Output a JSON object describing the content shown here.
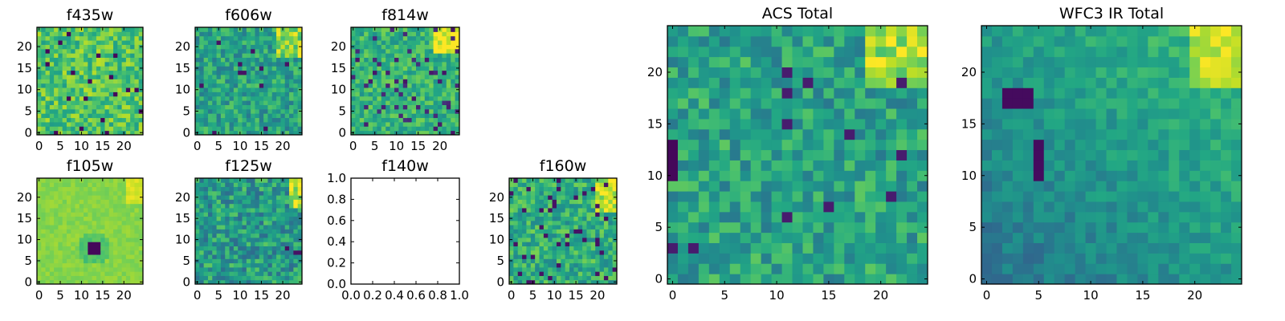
{
  "chart_data": [
    {
      "type": "heatmap",
      "title": "f435w",
      "x_ticks": [
        0,
        5,
        10,
        15,
        20
      ],
      "y_ticks": [
        0,
        5,
        10,
        15,
        20
      ],
      "xlim": [
        -0.5,
        24.5
      ],
      "ylim": [
        -0.5,
        24.5
      ],
      "grid_size": [
        25,
        25
      ],
      "grid": false,
      "colormap": "viridis",
      "pattern": "uniform noise, mostly green-yellow with scattered dark pixels"
    },
    {
      "type": "heatmap",
      "title": "f606w",
      "x_ticks": [
        0,
        5,
        10,
        15,
        20
      ],
      "y_ticks": [
        0,
        5,
        10,
        15,
        20
      ],
      "xlim": [
        -0.5,
        24.5
      ],
      "ylim": [
        -0.5,
        24.5
      ],
      "grid_size": [
        25,
        25
      ],
      "grid": false,
      "colormap": "viridis",
      "pattern": "noise, teal-green, brighter at top-right"
    },
    {
      "type": "heatmap",
      "title": "f814w",
      "x_ticks": [
        0,
        5,
        10,
        15,
        20
      ],
      "y_ticks": [
        0,
        5,
        10,
        15,
        20
      ],
      "xlim": [
        -0.5,
        24.5
      ],
      "ylim": [
        -0.5,
        24.5
      ],
      "grid_size": [
        25,
        25
      ],
      "grid": false,
      "colormap": "viridis",
      "pattern": "noise with dark speckles, bright yellow at top-right"
    },
    {
      "type": "heatmap",
      "title": "f105w",
      "x_ticks": [
        0,
        5,
        10,
        15,
        20
      ],
      "y_ticks": [
        0,
        5,
        10,
        15,
        20
      ],
      "xlim": [
        -0.5,
        24.5
      ],
      "ylim": [
        -0.5,
        24.5
      ],
      "grid_size": [
        25,
        25
      ],
      "grid": false,
      "colormap": "viridis",
      "pattern": "smooth yellow-green field with a dark blob near (13, 8)"
    },
    {
      "type": "heatmap",
      "title": "f125w",
      "x_ticks": [
        0,
        5,
        10,
        15,
        20
      ],
      "y_ticks": [
        0,
        5,
        10,
        15,
        20
      ],
      "xlim": [
        -0.5,
        24.5
      ],
      "ylim": [
        -0.5,
        24.5
      ],
      "grid_size": [
        25,
        25
      ],
      "grid": false,
      "colormap": "viridis",
      "pattern": "teal-green, yellow at top-right and right edge, dark spots near (21, 7)"
    },
    {
      "type": "empty",
      "title": "f140w",
      "x_ticks": [
        0.0,
        0.2,
        0.4,
        0.6,
        0.8,
        1.0
      ],
      "y_ticks": [
        0.0,
        0.2,
        0.4,
        0.6,
        0.8,
        1.0
      ],
      "xlim": [
        0,
        1
      ],
      "ylim": [
        0,
        1
      ],
      "tick_labels_x": [
        "0.0",
        "0.2",
        "0.4",
        "0.6",
        "0.8",
        "1.0"
      ],
      "tick_labels_y": [
        "0.0",
        "0.2",
        "0.4",
        "0.6",
        "0.8",
        "1.0"
      ]
    },
    {
      "type": "heatmap",
      "title": "f160w",
      "x_ticks": [
        0,
        5,
        10,
        15,
        20
      ],
      "y_ticks": [
        0,
        5,
        10,
        15,
        20
      ],
      "xlim": [
        -0.5,
        24.5
      ],
      "ylim": [
        -0.5,
        24.5
      ],
      "grid_size": [
        25,
        25
      ],
      "grid": false,
      "colormap": "viridis",
      "pattern": "green with dark spots, bright near top-right"
    },
    {
      "type": "heatmap",
      "title": "ACS Total",
      "x_ticks": [
        0,
        5,
        10,
        15,
        20
      ],
      "y_ticks": [
        0,
        5,
        10,
        15,
        20
      ],
      "xlim": [
        -0.5,
        24.5
      ],
      "ylim": [
        -0.5,
        24.5
      ],
      "grid_size": [
        25,
        25
      ],
      "grid": false,
      "colormap": "viridis",
      "pattern": "green field, yellow at top-right, dark column on left edge"
    },
    {
      "type": "heatmap",
      "title": "WFC3 IR Total",
      "x_ticks": [
        0,
        5,
        10,
        15,
        20
      ],
      "y_ticks": [
        0,
        5,
        10,
        15,
        20
      ],
      "xlim": [
        -0.5,
        24.5
      ],
      "ylim": [
        -0.5,
        24.5
      ],
      "grid_size": [
        25,
        25
      ],
      "grid": false,
      "colormap": "viridis",
      "pattern": "smooth teal-green gradient, yellow at top-right, dark patches at left"
    }
  ]
}
